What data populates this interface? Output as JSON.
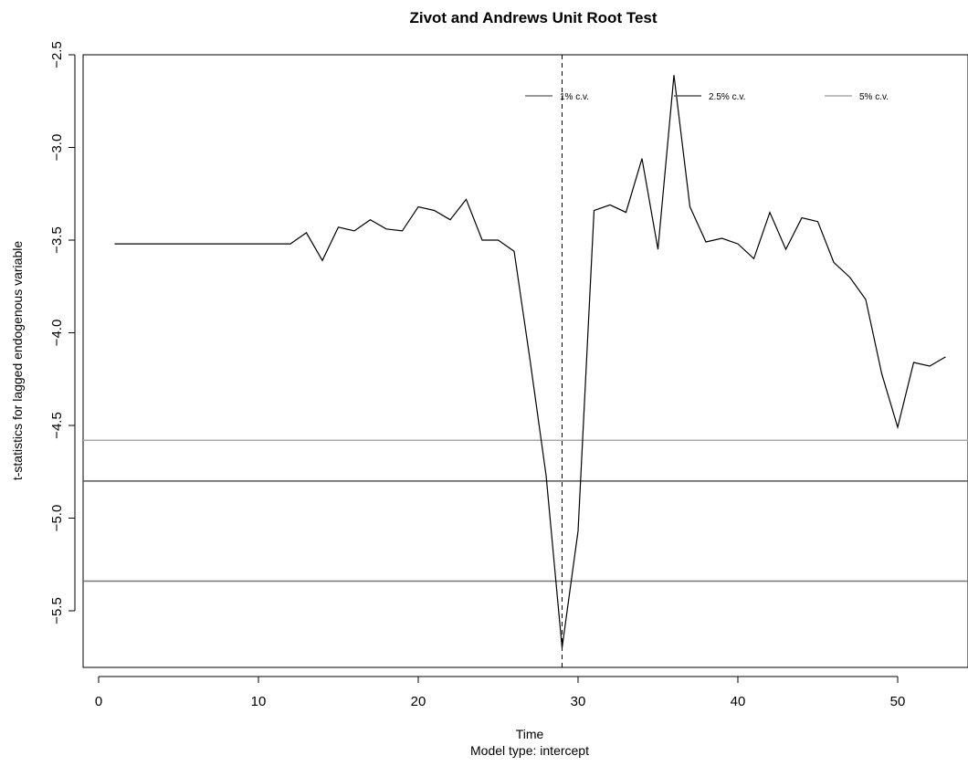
{
  "chart_data": {
    "type": "line",
    "title": "Zivot and Andrews Unit Root Test",
    "xlabel": "Time",
    "subtitle": "Model type: intercept",
    "ylabel": "t-statistics for lagged endogenous variable",
    "xlim": [
      -1,
      53.5
    ],
    "ylim": [
      -5.84,
      -2.5
    ],
    "x_ticks": [
      0,
      10,
      20,
      30,
      40,
      50
    ],
    "x_tick_labels": [
      "0",
      "10",
      "20",
      "30",
      "40",
      "50"
    ],
    "y_ticks": [
      -2.5,
      -3.0,
      -3.5,
      -4.0,
      -4.5,
      -5.0,
      -5.5
    ],
    "y_tick_labels": [
      "−2.5",
      "−3.0",
      "−3.5",
      "−4.0",
      "−4.5",
      "−5.0",
      "−5.5"
    ],
    "series": [
      {
        "x": [
          1,
          2,
          3,
          4,
          5,
          6,
          7,
          8,
          9,
          10,
          11,
          12,
          13,
          14,
          15,
          16,
          17,
          18,
          19,
          20,
          21,
          22,
          23,
          24,
          25,
          26,
          27,
          28,
          29,
          30,
          31,
          32,
          33,
          34,
          35,
          36,
          37,
          38,
          39,
          40,
          41,
          42,
          43,
          44,
          45,
          46,
          47,
          48,
          49,
          50,
          51,
          52,
          53
        ],
        "values": [
          -3.52,
          -3.52,
          -3.52,
          -3.52,
          -3.52,
          -3.52,
          -3.52,
          -3.52,
          -3.52,
          -3.52,
          -3.52,
          -3.52,
          -3.46,
          -3.61,
          -3.43,
          -3.45,
          -3.39,
          -3.44,
          -3.45,
          -3.32,
          -3.34,
          -3.39,
          -3.28,
          -3.5,
          -3.5,
          -3.56,
          -4.15,
          -4.77,
          -5.7,
          -5.07,
          -3.34,
          -3.31,
          -3.35,
          -3.06,
          -3.55,
          -2.61,
          -3.32,
          -3.51,
          -3.49,
          -3.52,
          -3.6,
          -3.35,
          -3.55,
          -3.38,
          -3.4,
          -3.62,
          -3.7,
          -3.82,
          -4.22,
          -4.51,
          -4.16,
          -4.18,
          -4.13
        ],
        "color": "#000000"
      }
    ],
    "critical_values": [
      {
        "name": "1% c.v.",
        "value": -5.34,
        "color": "#777777"
      },
      {
        "name": "2.5% c.v.",
        "value": -4.8,
        "color": "#555555"
      },
      {
        "name": "5% c.v.",
        "value": -4.58,
        "color": "#aaaaaa"
      }
    ],
    "break_point": 29,
    "legend_placement": "top",
    "grid": false
  }
}
